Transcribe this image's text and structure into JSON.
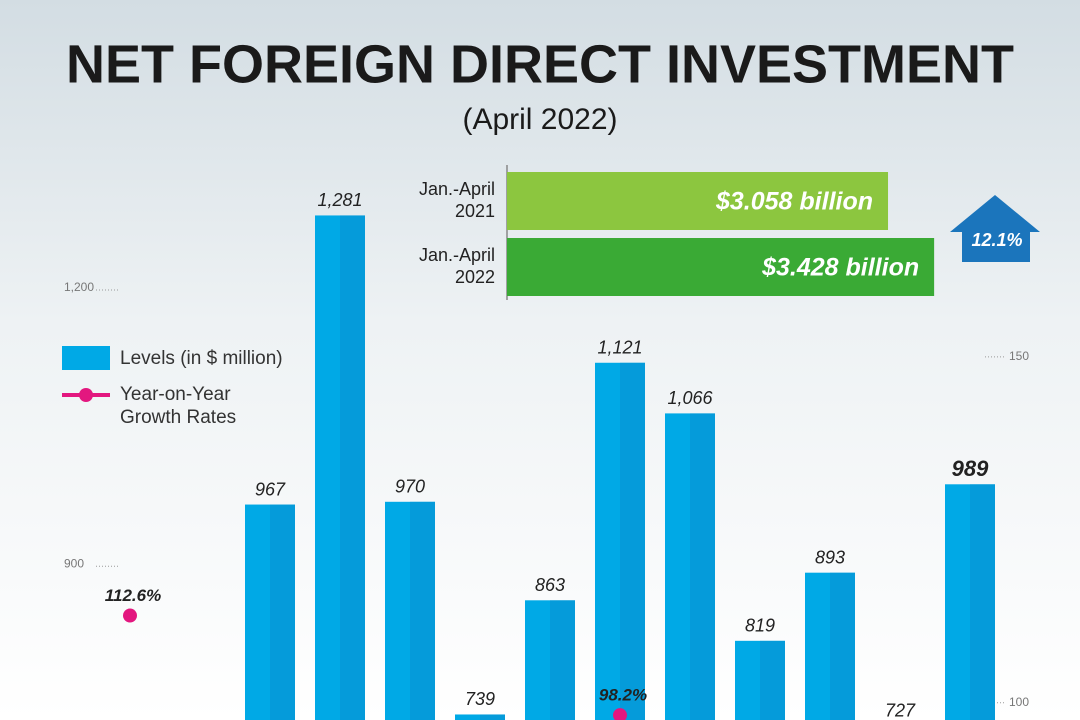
{
  "chart_data": {
    "type": "bar",
    "title": "NET FOREIGN DIRECT INVESTMENT",
    "subtitle": "(April 2022)",
    "categories": [
      null,
      null,
      null,
      null,
      null,
      null,
      null,
      null,
      null,
      null,
      null,
      null,
      null
    ],
    "series": [
      {
        "name": "Levels (in $ million)",
        "color": "#00a9e6",
        "values": [
          null,
          null,
          967,
          1281,
          970,
          739,
          863,
          1121,
          1066,
          819,
          893,
          727,
          989
        ],
        "value_labels": [
          null,
          null,
          "967",
          "1,281",
          "970",
          "739",
          "863",
          "1,121",
          "1,066",
          "819",
          "893",
          "727",
          "989"
        ]
      },
      {
        "name": "Year-on-Year Growth Rates",
        "color": "#e3177f",
        "type": "line",
        "axis": "y2",
        "values": [
          112.6,
          null,
          null,
          null,
          null,
          null,
          null,
          98.2,
          null,
          null,
          null,
          null,
          null
        ],
        "value_labels": [
          "112.6%",
          null,
          null,
          null,
          null,
          null,
          null,
          "98.2%",
          null,
          null,
          null,
          null,
          null
        ]
      }
    ],
    "ylim": [
      733,
      1515
    ],
    "yticks": [
      900,
      {
        "value": 1200,
        "label": "1,200"
      }
    ],
    "y2lim": [
      97.5,
      201.6
    ],
    "y2ticks": [
      100,
      150
    ],
    "inset": {
      "type": "bar",
      "categories": [
        "Jan.-April 2021",
        "Jan.-April 2022"
      ],
      "values": [
        3.058,
        3.428
      ],
      "value_labels": [
        "$3.058 billion",
        "$3.428 billion"
      ],
      "colors": [
        "#8cc63f",
        "#3aaa35"
      ],
      "xlim": [
        0,
        4
      ],
      "growth_label": "12.1%"
    }
  }
}
